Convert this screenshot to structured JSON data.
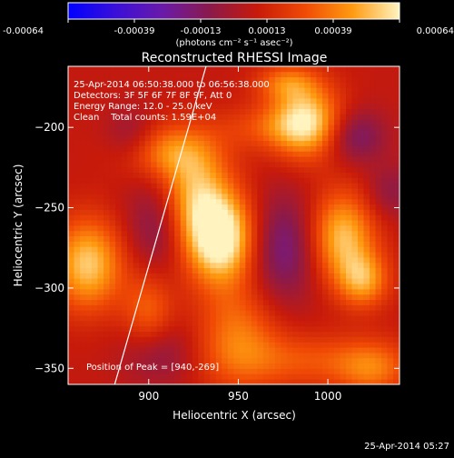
{
  "chart_data": {
    "type": "heatmap",
    "title": "Reconstructed RHESSI Image",
    "xlabel": "Heliocentric X (arcsec)",
    "ylabel": "Heliocentric Y (arcsec)",
    "xlim": [
      855,
      1040
    ],
    "ylim": [
      -360,
      -162
    ],
    "x_ticks": [
      900,
      950,
      1000
    ],
    "y_ticks": [
      -200,
      -250,
      -300,
      -350
    ],
    "colorbar": {
      "range": [
        -0.00064,
        0.00064
      ],
      "ticks": [
        "-0.00064",
        "-0.00039",
        "-0.00013",
        "0.00013",
        "0.00039",
        "0.00064"
      ],
      "units": "(photons cm⁻² s⁻¹ asec⁻²)",
      "colors": [
        "#0000ff",
        "#3a10d8",
        "#6a1aa8",
        "#8b1a4a",
        "#c81a0a",
        "#f04a05",
        "#ff9a10",
        "#fff4c0"
      ]
    },
    "annotations": {
      "time_range": "25-Apr-2014 06:50:38.000 to 06:56:38.000",
      "detectors": "Detectors: 3F 5F 6F 7F 8F 9F, Att 0",
      "energy": "Energy Range: 12.0 - 25.0 keV",
      "clean": "Clean    Total counts: 1.59E+04",
      "peak": "Position of Peak = [940,-269]"
    },
    "peak": [
      940,
      -269
    ],
    "limb_line": [
      [
        881,
        -360
      ],
      [
        932,
        -162
      ]
    ],
    "sources": [
      {
        "x": 940,
        "y": -269,
        "sx": 14,
        "sy": 20,
        "amp": 1.0
      },
      {
        "x": 925,
        "y": -240,
        "sx": 14,
        "sy": 22,
        "amp": 0.6
      },
      {
        "x": 910,
        "y": -215,
        "sx": 18,
        "sy": 12,
        "amp": 0.45
      },
      {
        "x": 988,
        "y": -196,
        "sx": 14,
        "sy": 16,
        "amp": 0.82
      },
      {
        "x": 977,
        "y": -172,
        "sx": 12,
        "sy": 8,
        "amp": 0.4
      },
      {
        "x": 866,
        "y": -285,
        "sx": 14,
        "sy": 20,
        "amp": 0.75
      },
      {
        "x": 1008,
        "y": -268,
        "sx": 13,
        "sy": 20,
        "amp": 0.72
      },
      {
        "x": 1020,
        "y": -295,
        "sx": 10,
        "sy": 12,
        "amp": 0.55
      },
      {
        "x": 950,
        "y": -330,
        "sx": 16,
        "sy": 22,
        "amp": 0.45
      },
      {
        "x": 988,
        "y": -345,
        "sx": 30,
        "sy": 12,
        "amp": 0.32
      },
      {
        "x": 900,
        "y": -315,
        "sx": 10,
        "sy": 18,
        "amp": 0.4
      },
      {
        "x": 965,
        "y": -200,
        "sx": 20,
        "sy": 10,
        "amp": 0.25
      },
      {
        "x": 1025,
        "y": -350,
        "sx": 14,
        "sy": 12,
        "amp": 0.4
      }
    ],
    "negatives": [
      {
        "x": 905,
        "y": -260,
        "sx": 12,
        "sy": 22,
        "amp": 0.35
      },
      {
        "x": 975,
        "y": -275,
        "sx": 14,
        "sy": 24,
        "amp": 0.45
      },
      {
        "x": 1015,
        "y": -205,
        "sx": 12,
        "sy": 12,
        "amp": 0.4
      },
      {
        "x": 905,
        "y": -340,
        "sx": 14,
        "sy": 14,
        "amp": 0.3
      },
      {
        "x": 890,
        "y": -205,
        "sx": 10,
        "sy": 12,
        "amp": 0.25
      },
      {
        "x": 1035,
        "y": -240,
        "sx": 10,
        "sy": 12,
        "amp": 0.25
      }
    ]
  },
  "footer": {
    "timestamp": "25-Apr-2014 05:27"
  }
}
